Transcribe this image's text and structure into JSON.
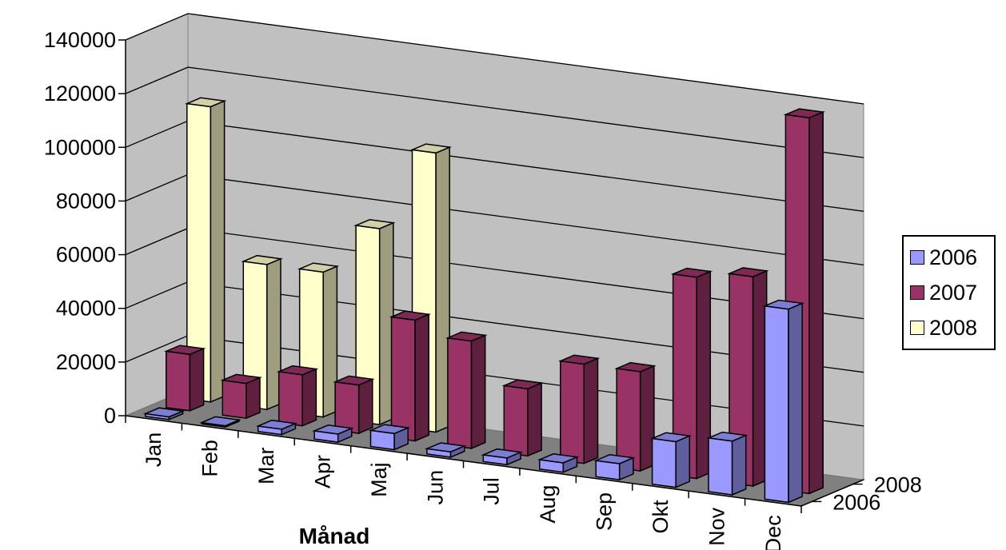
{
  "chart_data": {
    "type": "bar",
    "subtype": "3d-column",
    "xlabel": "Månad",
    "categories": [
      "Jan",
      "Feb",
      "Mar",
      "Apr",
      "Maj",
      "Jun",
      "Jul",
      "Aug",
      "Sep",
      "Okt",
      "Nov",
      "Dec"
    ],
    "series": [
      {
        "name": "2006",
        "color": "#9999ff",
        "values": [
          1000,
          500,
          2000,
          3000,
          6000,
          2000,
          2500,
          3500,
          6000,
          17000,
          20000,
          72000
        ]
      },
      {
        "name": "2007",
        "color": "#993366",
        "values": [
          21000,
          13000,
          19000,
          18000,
          45000,
          40000,
          25000,
          37000,
          37000,
          75000,
          78000,
          140000
        ]
      },
      {
        "name": "2008",
        "color": "#ffffcc",
        "values": [
          110000,
          54000,
          54000,
          73000,
          104000,
          null,
          null,
          null,
          null,
          null,
          null,
          null
        ]
      }
    ],
    "yticks": [
      "0",
      "20000",
      "40000",
      "60000",
      "80000",
      "100000",
      "120000",
      "140000"
    ],
    "depth_labels": [
      "2008",
      "2006"
    ],
    "ylim": [
      0,
      140000
    ],
    "grid": true,
    "legend_position": "right"
  }
}
